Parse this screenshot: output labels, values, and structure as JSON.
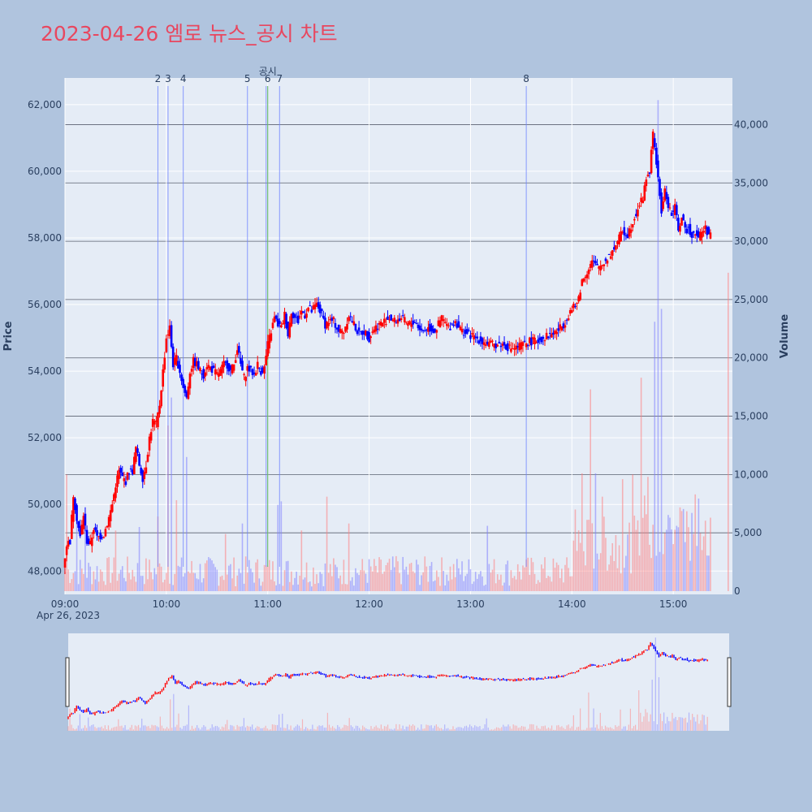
{
  "title": "2023-04-26 엠로 뉴스_공시 차트",
  "chart_data": {
    "type": "candlestick",
    "up_color": "#ff0000",
    "down_color": "#0000ff",
    "plot_bg": "#e5ecf6",
    "page_bg": "#b0c4de",
    "y_price_label": "Price",
    "y_volume_label": "Volume",
    "price_range": [
      47300,
      62800
    ],
    "volume_range": [
      0,
      44000
    ],
    "price_ticks": [
      "48,000",
      "50,000",
      "52,000",
      "54,000",
      "56,000",
      "58,000",
      "60,000",
      "62,000"
    ],
    "price_tick_values": [
      48000,
      50000,
      52000,
      54000,
      56000,
      58000,
      60000,
      62000
    ],
    "volume_ticks": [
      "0",
      "5,000",
      "10,000",
      "15,000",
      "20,000",
      "25,000",
      "30,000",
      "35,000",
      "40,000"
    ],
    "volume_tick_values": [
      0,
      5000,
      10000,
      15000,
      20000,
      25000,
      30000,
      35000,
      40000
    ],
    "x_ticks": [
      "09:00",
      "10:00",
      "11:00",
      "12:00",
      "13:00",
      "14:00",
      "15:00"
    ],
    "x_tick_minutes": [
      0,
      60,
      120,
      180,
      240,
      300,
      360
    ],
    "x_date_label": "Apr 26, 2023",
    "x_range_minutes": [
      0,
      395
    ],
    "events": [
      {
        "label": "2",
        "minute": 55,
        "type": "news"
      },
      {
        "label": "3",
        "minute": 61,
        "type": "news"
      },
      {
        "label": "4",
        "minute": 70,
        "type": "news"
      },
      {
        "label": "5",
        "minute": 108,
        "type": "news"
      },
      {
        "label": "6",
        "minute": 120,
        "type": "disclosure"
      },
      {
        "label": "7",
        "minute": 127,
        "type": "news"
      },
      {
        "label": "8",
        "minute": 273,
        "type": "news"
      }
    ],
    "disclosure_label": "공시",
    "price_path": [
      [
        0,
        48100
      ],
      [
        2,
        48800
      ],
      [
        4,
        48900
      ],
      [
        6,
        50300
      ],
      [
        8,
        49600
      ],
      [
        10,
        49000
      ],
      [
        12,
        49700
      ],
      [
        14,
        48900
      ],
      [
        16,
        48800
      ],
      [
        18,
        49300
      ],
      [
        20,
        49000
      ],
      [
        24,
        49100
      ],
      [
        27,
        49600
      ],
      [
        29,
        50000
      ],
      [
        31,
        50600
      ],
      [
        33,
        51000
      ],
      [
        35,
        50800
      ],
      [
        37,
        50700
      ],
      [
        39,
        51000
      ],
      [
        41,
        51000
      ],
      [
        43,
        51700
      ],
      [
        45,
        51200
      ],
      [
        47,
        50800
      ],
      [
        49,
        51200
      ],
      [
        51,
        52000
      ],
      [
        53,
        52500
      ],
      [
        55,
        52400
      ],
      [
        57,
        53000
      ],
      [
        59,
        54000
      ],
      [
        61,
        55000
      ],
      [
        63,
        55300
      ],
      [
        65,
        54200
      ],
      [
        67,
        54400
      ],
      [
        69,
        54000
      ],
      [
        71,
        53500
      ],
      [
        73,
        53200
      ],
      [
        75,
        54000
      ],
      [
        77,
        54300
      ],
      [
        79,
        54200
      ],
      [
        81,
        54000
      ],
      [
        83,
        53900
      ],
      [
        85,
        54200
      ],
      [
        87,
        54100
      ],
      [
        89,
        54000
      ],
      [
        91,
        53900
      ],
      [
        93,
        54000
      ],
      [
        95,
        54200
      ],
      [
        97,
        54200
      ],
      [
        99,
        54000
      ],
      [
        101,
        54200
      ],
      [
        103,
        54700
      ],
      [
        105,
        54200
      ],
      [
        107,
        53800
      ],
      [
        109,
        54100
      ],
      [
        111,
        54000
      ],
      [
        113,
        53900
      ],
      [
        115,
        54200
      ],
      [
        117,
        54000
      ],
      [
        119,
        54100
      ],
      [
        121,
        54800
      ],
      [
        123,
        55200
      ],
      [
        125,
        55600
      ],
      [
        127,
        55400
      ],
      [
        129,
        55300
      ],
      [
        131,
        55700
      ],
      [
        133,
        55100
      ],
      [
        135,
        55800
      ],
      [
        137,
        55600
      ],
      [
        139,
        55500
      ],
      [
        141,
        55800
      ],
      [
        143,
        55700
      ],
      [
        145,
        55900
      ],
      [
        147,
        55800
      ],
      [
        150,
        56000
      ],
      [
        153,
        55700
      ],
      [
        155,
        55400
      ],
      [
        157,
        55500
      ],
      [
        160,
        55500
      ],
      [
        163,
        55200
      ],
      [
        166,
        55200
      ],
      [
        169,
        55700
      ],
      [
        172,
        55400
      ],
      [
        175,
        55100
      ],
      [
        178,
        55200
      ],
      [
        181,
        55000
      ],
      [
        184,
        55300
      ],
      [
        187,
        55400
      ],
      [
        190,
        55500
      ],
      [
        193,
        55600
      ],
      [
        196,
        55500
      ],
      [
        200,
        55600
      ],
      [
        204,
        55400
      ],
      [
        208,
        55500
      ],
      [
        212,
        55200
      ],
      [
        216,
        55300
      ],
      [
        220,
        55200
      ],
      [
        224,
        55600
      ],
      [
        228,
        55300
      ],
      [
        232,
        55500
      ],
      [
        236,
        55200
      ],
      [
        240,
        55100
      ],
      [
        244,
        55000
      ],
      [
        248,
        54900
      ],
      [
        252,
        54800
      ],
      [
        256,
        54800
      ],
      [
        260,
        54800
      ],
      [
        264,
        54700
      ],
      [
        268,
        54700
      ],
      [
        272,
        54800
      ],
      [
        276,
        54900
      ],
      [
        280,
        54900
      ],
      [
        284,
        55000
      ],
      [
        288,
        55100
      ],
      [
        292,
        55200
      ],
      [
        296,
        55400
      ],
      [
        300,
        55800
      ],
      [
        304,
        56000
      ],
      [
        307,
        56700
      ],
      [
        310,
        57000
      ],
      [
        313,
        57300
      ],
      [
        316,
        57100
      ],
      [
        319,
        57200
      ],
      [
        322,
        57400
      ],
      [
        325,
        57600
      ],
      [
        328,
        57900
      ],
      [
        331,
        58200
      ],
      [
        334,
        58100
      ],
      [
        337,
        58500
      ],
      [
        340,
        58900
      ],
      [
        343,
        59200
      ],
      [
        345,
        59800
      ],
      [
        347,
        60000
      ],
      [
        349,
        61100
      ],
      [
        350,
        60800
      ],
      [
        352,
        59700
      ],
      [
        354,
        58800
      ],
      [
        356,
        59400
      ],
      [
        358,
        59000
      ],
      [
        360,
        58700
      ],
      [
        362,
        58900
      ],
      [
        364,
        58300
      ],
      [
        366,
        58600
      ],
      [
        368,
        58200
      ],
      [
        370,
        58300
      ],
      [
        372,
        58100
      ],
      [
        374,
        58200
      ],
      [
        376,
        58000
      ],
      [
        378,
        58200
      ],
      [
        380,
        58300
      ],
      [
        382,
        58100
      ]
    ],
    "volume_spikes": [
      [
        1,
        10000
      ],
      [
        7,
        7500
      ],
      [
        12,
        6000
      ],
      [
        30,
        5200
      ],
      [
        44,
        5500
      ],
      [
        55,
        6400
      ],
      [
        61,
        14200
      ],
      [
        63,
        16600
      ],
      [
        66,
        7800
      ],
      [
        72,
        11500
      ],
      [
        95,
        4900
      ],
      [
        105,
        5800
      ],
      [
        126,
        7400
      ],
      [
        128,
        7700
      ],
      [
        140,
        5200
      ],
      [
        155,
        8100
      ],
      [
        168,
        5800
      ],
      [
        196,
        3000
      ],
      [
        217,
        2500
      ],
      [
        250,
        5600
      ],
      [
        271,
        2200
      ],
      [
        302,
        7000
      ],
      [
        306,
        10100
      ],
      [
        311,
        17300
      ],
      [
        314,
        10100
      ],
      [
        318,
        8100
      ],
      [
        330,
        9600
      ],
      [
        336,
        10000
      ],
      [
        341,
        18300
      ],
      [
        345,
        9800
      ],
      [
        349,
        23100
      ],
      [
        351,
        42100
      ],
      [
        353,
        24200
      ],
      [
        358,
        6300
      ],
      [
        362,
        5600
      ],
      [
        372,
        4900
      ],
      [
        378,
        4700
      ],
      [
        382,
        6300
      ]
    ],
    "last_volume_marker": 27300,
    "ref_price_lines": [
      61000,
      59400,
      57700,
      56000,
      54200,
      52400,
      50800,
      49000
    ]
  }
}
